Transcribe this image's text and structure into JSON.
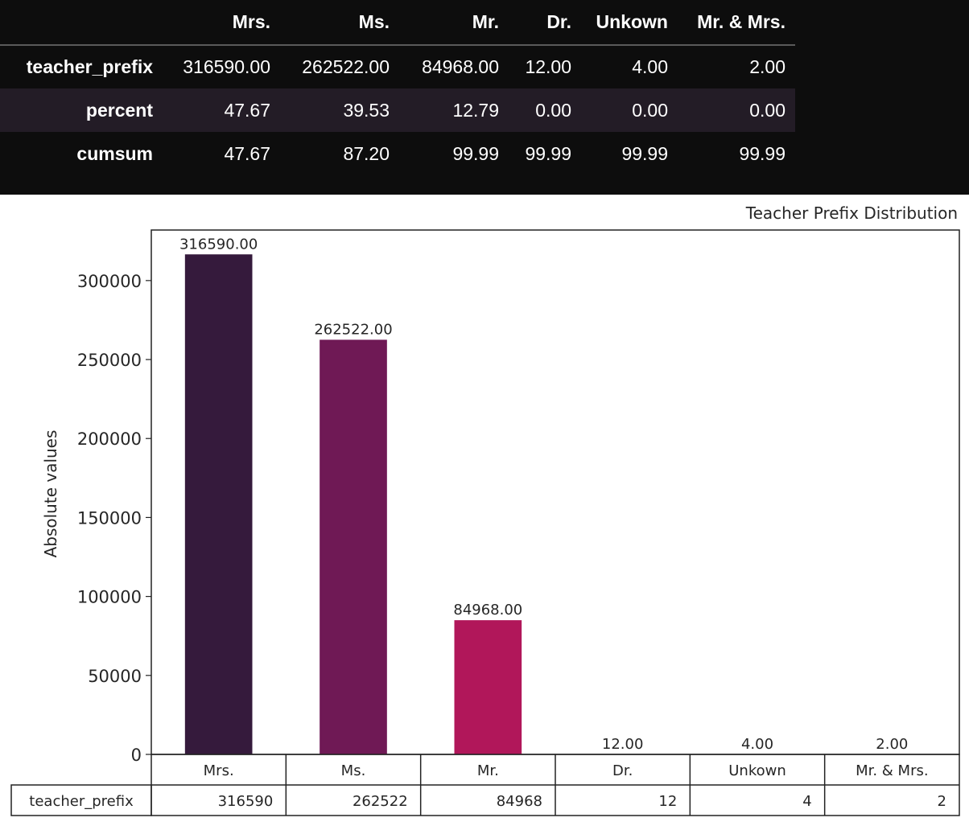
{
  "dataframe": {
    "columns": [
      "",
      "Mrs.",
      "Ms.",
      "Mr.",
      "Dr.",
      "Unkown",
      "Mr. & Mrs."
    ],
    "rows": [
      {
        "label": "teacher_prefix",
        "cells": [
          "316590.00",
          "262522.00",
          "84968.00",
          "12.00",
          "4.00",
          "2.00"
        ]
      },
      {
        "label": "percent",
        "cells": [
          "47.67",
          "39.53",
          "12.79",
          "0.00",
          "0.00",
          "0.00"
        ]
      },
      {
        "label": "cumsum",
        "cells": [
          "47.67",
          "87.20",
          "99.99",
          "99.99",
          "99.99",
          "99.99"
        ]
      }
    ]
  },
  "chart_data": {
    "type": "bar",
    "title": "Teacher Prefix Distribution",
    "xlabel": "",
    "ylabel": "Absolute values",
    "categories": [
      "Mrs.",
      "Ms.",
      "Mr.",
      "Dr.",
      "Unkown",
      "Mr. & Mrs."
    ],
    "values": [
      316590,
      262522,
      84968,
      12,
      4,
      2
    ],
    "bar_labels": [
      "316590.00",
      "262522.00",
      "84968.00",
      "12.00",
      "4.00",
      "2.00"
    ],
    "colors": [
      "#351a3c",
      "#6f1955",
      "#b1175a",
      "#d63a4a",
      "#e86046",
      "#f08f68"
    ],
    "ylim": [
      0,
      332000
    ],
    "yticks": [
      0,
      50000,
      100000,
      150000,
      200000,
      250000,
      300000
    ],
    "grid": false,
    "table": {
      "row_label": "teacher_prefix",
      "cells": [
        "316590",
        "262522",
        "84968",
        "12",
        "4",
        "2"
      ]
    }
  }
}
